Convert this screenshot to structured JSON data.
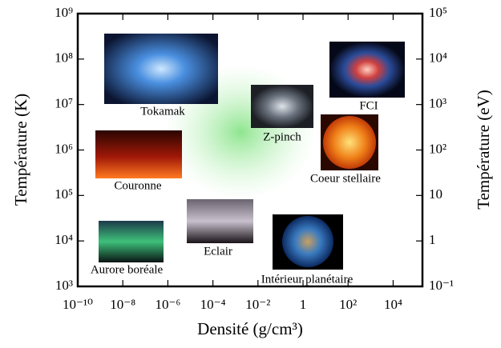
{
  "chart_data": {
    "type": "image-map",
    "x_label": "Densité (g/cm³)",
    "y_label": "Température (K)",
    "y2_label": "Température (eV)",
    "x_log": true,
    "y_log": true,
    "xlim": [
      1e-10,
      200000
    ],
    "xticks": [
      {
        "value": 1e-10,
        "label": "10⁻¹⁰"
      },
      {
        "value": 1e-08,
        "label": "10⁻⁸"
      },
      {
        "value": 1e-06,
        "label": "10⁻⁶"
      },
      {
        "value": 0.0001,
        "label": "10⁻⁴"
      },
      {
        "value": 0.01,
        "label": "10⁻²"
      },
      1,
      {
        "value": 100,
        "label": "10²"
      },
      {
        "value": 10000,
        "label": "10⁴"
      }
    ],
    "ylim": [
      1000,
      1000000000
    ],
    "yticks": [
      {
        "value": 1000,
        "label": "10³"
      },
      {
        "value": 10000,
        "label": "10⁴"
      },
      {
        "value": 100000,
        "label": "10⁵"
      },
      {
        "value": 1000000,
        "label": "10⁶"
      },
      {
        "value": 10000000,
        "label": "10⁷"
      },
      {
        "value": 100000000,
        "label": "10⁸"
      },
      {
        "value": 1000000000,
        "label": "10⁹"
      }
    ],
    "y2lim": [
      0.1,
      100000
    ],
    "y2ticks": [
      {
        "value": 0.1,
        "label": "10⁻¹"
      },
      1,
      10,
      {
        "value": 100,
        "label": "10²"
      },
      {
        "value": 1000,
        "label": "10³"
      },
      {
        "value": 10000,
        "label": "10⁴"
      },
      {
        "value": 100000,
        "label": "10⁵"
      }
    ],
    "regions": [
      "Tokamak",
      "FCI",
      "Z-pinch",
      "Coeur stellaire",
      "Couronne",
      "Eclair",
      "Aurore boréale",
      "Intérieur planétaire"
    ]
  }
}
